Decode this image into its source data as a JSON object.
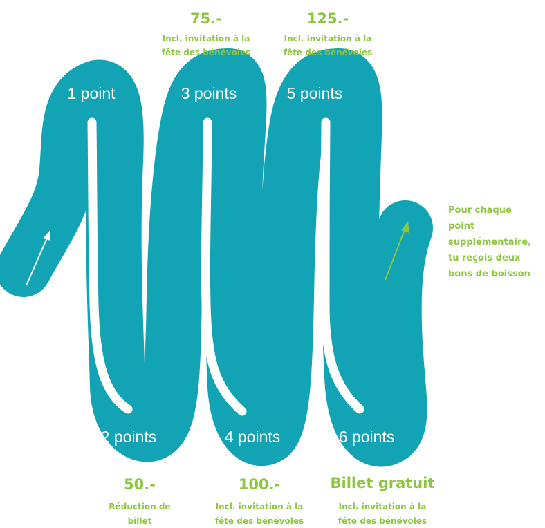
{
  "colors": {
    "path": "#12a3b4",
    "accent": "#8dc63f",
    "point_text": "#ffffff"
  },
  "points": [
    "1 point",
    "2 points",
    "3 points",
    "4 points",
    "5 points",
    "6 points"
  ],
  "rewards": {
    "r50": {
      "amount": "50.-",
      "line1": "Réduction de",
      "line2": "billet"
    },
    "r75": {
      "amount": "75.-",
      "line1": "Incl. invitation à la",
      "line2": "fête des bénévoles"
    },
    "r100": {
      "amount": "100.-",
      "line1": "Incl. invitation à la",
      "line2": "fête des bénévoles"
    },
    "r125": {
      "amount": "125.-",
      "line1": "Incl. invitation à la",
      "line2": "fête des bénévoles"
    },
    "free": {
      "amount": "Billet gratuit",
      "line1": "Incl. invitation à la",
      "line2": "fête des bénévoles"
    }
  },
  "extra_note": [
    "Pour chaque",
    "point",
    "supplémentaire,",
    "tu reçois deux",
    "bons de boisson"
  ],
  "icons": {
    "start_arrow": "arrow-up-right-icon",
    "continue_arrow": "arrow-up-right-icon"
  }
}
